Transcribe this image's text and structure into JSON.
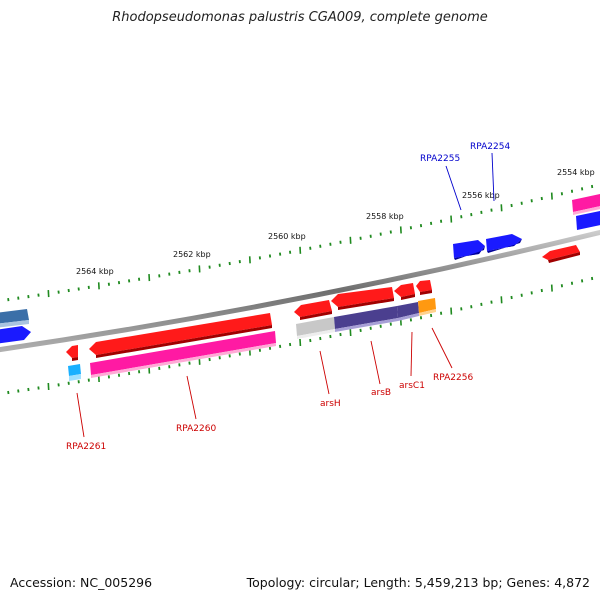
{
  "title": "Rhodopseudomonas palustris CGA009, complete genome",
  "footer": {
    "accession": "Accession: NC_005296",
    "topology": "Topology: circular; Length: 5,459,213 bp; Genes: 4,872"
  },
  "colors": {
    "backbone": "#888888",
    "tick": "#1f8a1f",
    "red_gene": "#ff1a1a",
    "pink_gene": "#ff1aa3",
    "blue_gene": "#1a1aff",
    "steel_gene": "#3b6fa8",
    "grey_gene": "#c8c8c8",
    "purple_gene": "#4b3f8f",
    "orange_gene": "#ff9911",
    "cyan_gene": "#1ab0ff",
    "label_red": "#cc0000",
    "label_blue": "#0000cc"
  },
  "scale_labels": [
    "2564 kbp",
    "2562 kbp",
    "2560 kbp",
    "2558 kbp",
    "2556 kbp",
    "2554 kbp"
  ],
  "gene_labels": [
    {
      "text": "RPA2255",
      "color": "blue"
    },
    {
      "text": "RPA2254",
      "color": "blue"
    },
    {
      "text": "RPA2261",
      "color": "red"
    },
    {
      "text": "RPA2260",
      "color": "red"
    },
    {
      "text": "arsH",
      "color": "red"
    },
    {
      "text": "arsB",
      "color": "red"
    },
    {
      "text": "arsC1",
      "color": "red"
    },
    {
      "text": "RPA2256",
      "color": "red"
    }
  ]
}
